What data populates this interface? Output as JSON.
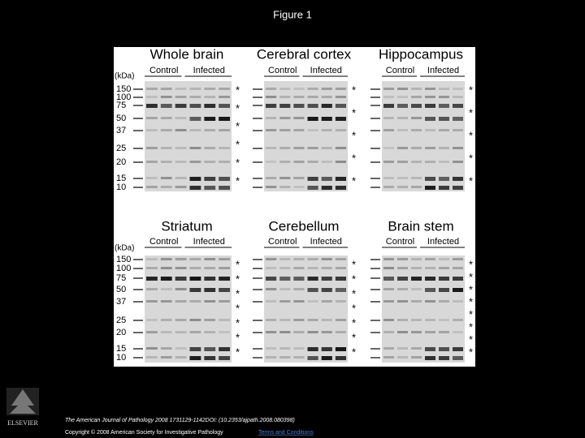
{
  "title": "Figure 1",
  "kda_label": "(kDa)",
  "kda": [
    "150",
    "100",
    "75",
    "50",
    "37",
    "25",
    "20",
    "15",
    "10"
  ],
  "panels": [
    {
      "title": "Whole brain",
      "control": "Control",
      "infected": "Infected",
      "asterisks": [
        "*",
        "*",
        "*",
        "*",
        "*",
        "*"
      ]
    },
    {
      "title": "Cerebral cortex",
      "control": "Control",
      "infected": "Infected",
      "asterisks": [
        "*",
        "*",
        "*",
        "*",
        "*"
      ]
    },
    {
      "title": "Hippocampus",
      "control": "Control",
      "infected": "Infected",
      "asterisks": [
        "*",
        "*",
        "*",
        "*",
        "*"
      ]
    },
    {
      "title": "Striatum",
      "control": "Control",
      "infected": "Infected",
      "asterisks": [
        "*",
        "*",
        "*",
        "*",
        "*",
        "*",
        "*"
      ]
    },
    {
      "title": "Cerebellum",
      "control": "Control",
      "infected": "Infected",
      "asterisks": [
        "*",
        "*",
        "*",
        "*",
        "*",
        "*",
        "*"
      ]
    },
    {
      "title": "Brain stem",
      "control": "Control",
      "infected": "Infected",
      "asterisks": [
        "*",
        "*",
        "*",
        "*",
        "*",
        "*",
        "*",
        "*"
      ]
    }
  ],
  "footer": {
    "citation": "The American Journal of Pathology 2008 1731129-1142DOI: (10.2353/ajpath.2008.080398)",
    "copyright": "Copyright © 2008 American Society for Investigative Pathology",
    "link": "Terms and Conditions"
  },
  "logo": "ELSEVIER"
}
